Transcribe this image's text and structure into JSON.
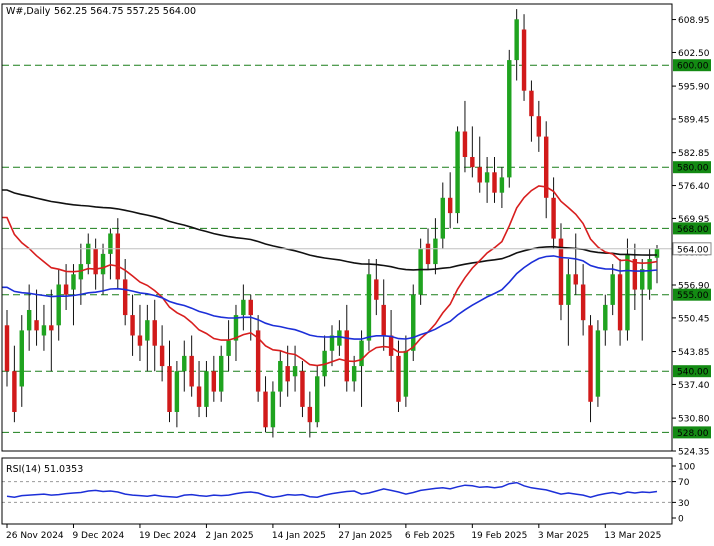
{
  "header": {
    "symbol_label": "W#,Daily",
    "ohlc_label": "562.25 564.75 557.25 564.00"
  },
  "chart_data": [
    {
      "type": "candlestick",
      "title": "W#,Daily",
      "ohlc": {
        "open": 562.25,
        "high": 564.75,
        "low": 557.25,
        "close": 564.0
      },
      "ylim": [
        524.35,
        612.0
      ],
      "y_ticks": [
        "608.95",
        "602.50",
        "595.90",
        "589.45",
        "582.85",
        "576.40",
        "569.95",
        "563.35",
        "556.90",
        "550.45",
        "543.85",
        "537.40",
        "530.80",
        "524.35"
      ],
      "x_ticks": [
        "26 Nov 2024",
        "9 Dec 2024",
        "19 Dec 2024",
        "2 Jan 2025",
        "14 Jan 2025",
        "27 Jan 2025",
        "6 Feb 2025",
        "19 Feb 2025",
        "3 Mar 2025",
        "13 Mar 2025"
      ],
      "level_lines": [
        600.0,
        580.0,
        568.0,
        555.0,
        540.0,
        528.0
      ],
      "level_labels": [
        "600.00",
        "580.00",
        "568.00",
        "555.00",
        "540.00",
        "528.00"
      ],
      "current_price": 564.0,
      "current_price_label": "564.00",
      "candles": [
        {
          "o": 549,
          "h": 552,
          "l": 537,
          "c": 540
        },
        {
          "o": 540,
          "h": 545,
          "l": 530,
          "c": 532
        },
        {
          "o": 537,
          "h": 551,
          "l": 533,
          "c": 548
        },
        {
          "o": 548,
          "h": 557,
          "l": 544,
          "c": 552
        },
        {
          "o": 550,
          "h": 556,
          "l": 545,
          "c": 548
        },
        {
          "o": 547,
          "h": 553,
          "l": 544,
          "c": 549
        },
        {
          "o": 549,
          "h": 556,
          "l": 540,
          "c": 548
        },
        {
          "o": 549,
          "h": 560,
          "l": 546,
          "c": 557
        },
        {
          "o": 557,
          "h": 561,
          "l": 552,
          "c": 555
        },
        {
          "o": 556,
          "h": 561,
          "l": 549,
          "c": 559
        },
        {
          "o": 558,
          "h": 565,
          "l": 553,
          "c": 561
        },
        {
          "o": 561,
          "h": 567,
          "l": 559,
          "c": 565
        },
        {
          "o": 564,
          "h": 566,
          "l": 556,
          "c": 559
        },
        {
          "o": 559,
          "h": 565,
          "l": 555,
          "c": 563
        },
        {
          "o": 563,
          "h": 568,
          "l": 558,
          "c": 567
        },
        {
          "o": 567,
          "h": 570,
          "l": 556,
          "c": 558
        },
        {
          "o": 558,
          "h": 562,
          "l": 549,
          "c": 551
        },
        {
          "o": 551,
          "h": 555,
          "l": 543,
          "c": 547
        },
        {
          "o": 547,
          "h": 553,
          "l": 542,
          "c": 545
        },
        {
          "o": 546,
          "h": 553,
          "l": 540,
          "c": 550
        },
        {
          "o": 550,
          "h": 554,
          "l": 540,
          "c": 545
        },
        {
          "o": 545,
          "h": 549,
          "l": 538,
          "c": 541
        },
        {
          "o": 541,
          "h": 546,
          "l": 530,
          "c": 532
        },
        {
          "o": 532,
          "h": 542,
          "l": 529,
          "c": 540
        },
        {
          "o": 540,
          "h": 546,
          "l": 536,
          "c": 543
        },
        {
          "o": 543,
          "h": 547,
          "l": 535,
          "c": 537
        },
        {
          "o": 537,
          "h": 542,
          "l": 531,
          "c": 533
        },
        {
          "o": 533,
          "h": 542,
          "l": 531,
          "c": 540
        },
        {
          "o": 540,
          "h": 543,
          "l": 534,
          "c": 536
        },
        {
          "o": 536,
          "h": 545,
          "l": 534,
          "c": 543
        },
        {
          "o": 543,
          "h": 550,
          "l": 540,
          "c": 546
        },
        {
          "o": 546,
          "h": 553,
          "l": 542,
          "c": 551
        },
        {
          "o": 551,
          "h": 557,
          "l": 548,
          "c": 554
        },
        {
          "o": 554,
          "h": 555,
          "l": 546,
          "c": 551
        },
        {
          "o": 548,
          "h": 551,
          "l": 534,
          "c": 536
        },
        {
          "o": 536,
          "h": 539,
          "l": 528,
          "c": 529
        },
        {
          "o": 529,
          "h": 538,
          "l": 527,
          "c": 536
        },
        {
          "o": 536,
          "h": 544,
          "l": 533,
          "c": 542
        },
        {
          "o": 541,
          "h": 545,
          "l": 535,
          "c": 538
        },
        {
          "o": 539,
          "h": 545,
          "l": 536,
          "c": 541
        },
        {
          "o": 540,
          "h": 542,
          "l": 531,
          "c": 533
        },
        {
          "o": 533,
          "h": 536,
          "l": 527,
          "c": 530
        },
        {
          "o": 530,
          "h": 541,
          "l": 529,
          "c": 539
        },
        {
          "o": 539,
          "h": 547,
          "l": 537,
          "c": 544
        },
        {
          "o": 544,
          "h": 549,
          "l": 541,
          "c": 547
        },
        {
          "o": 545,
          "h": 550,
          "l": 543,
          "c": 548
        },
        {
          "o": 548,
          "h": 553,
          "l": 536,
          "c": 538
        },
        {
          "o": 538,
          "h": 543,
          "l": 536,
          "c": 541
        },
        {
          "o": 541,
          "h": 548,
          "l": 533,
          "c": 546
        },
        {
          "o": 546,
          "h": 562,
          "l": 544,
          "c": 559
        },
        {
          "o": 558,
          "h": 562,
          "l": 551,
          "c": 554
        },
        {
          "o": 553,
          "h": 558,
          "l": 544,
          "c": 547
        },
        {
          "o": 547,
          "h": 552,
          "l": 540,
          "c": 543
        },
        {
          "o": 543,
          "h": 546,
          "l": 532,
          "c": 534
        },
        {
          "o": 535,
          "h": 547,
          "l": 533,
          "c": 544
        },
        {
          "o": 544,
          "h": 557,
          "l": 542,
          "c": 555
        },
        {
          "o": 555,
          "h": 566,
          "l": 553,
          "c": 564
        },
        {
          "o": 565,
          "h": 568,
          "l": 560,
          "c": 561
        },
        {
          "o": 561,
          "h": 570,
          "l": 559,
          "c": 566
        },
        {
          "o": 566,
          "h": 577,
          "l": 564,
          "c": 574
        },
        {
          "o": 574,
          "h": 579,
          "l": 568,
          "c": 571
        },
        {
          "o": 571,
          "h": 588,
          "l": 569,
          "c": 587
        },
        {
          "o": 587,
          "h": 593,
          "l": 579,
          "c": 582
        },
        {
          "o": 582,
          "h": 588,
          "l": 578,
          "c": 580
        },
        {
          "o": 580,
          "h": 586,
          "l": 575,
          "c": 577
        },
        {
          "o": 577,
          "h": 582,
          "l": 573,
          "c": 579
        },
        {
          "o": 579,
          "h": 582,
          "l": 573,
          "c": 575
        },
        {
          "o": 575,
          "h": 580,
          "l": 572,
          "c": 578
        },
        {
          "o": 578,
          "h": 603,
          "l": 576,
          "c": 601
        },
        {
          "o": 601,
          "h": 611,
          "l": 597,
          "c": 609
        },
        {
          "o": 607,
          "h": 610,
          "l": 593,
          "c": 595
        },
        {
          "o": 595,
          "h": 597,
          "l": 585,
          "c": 590
        },
        {
          "o": 590,
          "h": 593,
          "l": 583,
          "c": 586
        },
        {
          "o": 586,
          "h": 589,
          "l": 570,
          "c": 574
        },
        {
          "o": 574,
          "h": 578,
          "l": 564,
          "c": 566
        },
        {
          "o": 566,
          "h": 569,
          "l": 550,
          "c": 553
        },
        {
          "o": 553,
          "h": 562,
          "l": 545,
          "c": 559
        },
        {
          "o": 559,
          "h": 567,
          "l": 555,
          "c": 557
        },
        {
          "o": 557,
          "h": 561,
          "l": 547,
          "c": 550
        },
        {
          "o": 549,
          "h": 551,
          "l": 530,
          "c": 534
        },
        {
          "o": 535,
          "h": 550,
          "l": 533,
          "c": 548
        },
        {
          "o": 548,
          "h": 555,
          "l": 545,
          "c": 553
        },
        {
          "o": 553,
          "h": 561,
          "l": 551,
          "c": 559
        },
        {
          "o": 559,
          "h": 562,
          "l": 545,
          "c": 548
        },
        {
          "o": 548,
          "h": 566,
          "l": 546,
          "c": 563
        },
        {
          "o": 562,
          "h": 565,
          "l": 552,
          "c": 556
        },
        {
          "o": 556,
          "h": 562,
          "l": 546,
          "c": 560
        },
        {
          "o": 556,
          "h": 564,
          "l": 554,
          "c": 562
        },
        {
          "o": 562.25,
          "h": 564.75,
          "l": 557.25,
          "c": 564
        }
      ]
    },
    {
      "type": "line",
      "title": "RSI(14) 51.0353",
      "ylim": [
        0,
        100
      ],
      "y_ticks": [
        "100",
        "70",
        "30",
        "0"
      ],
      "levels": [
        70,
        30
      ],
      "values": [
        42,
        40,
        43,
        44,
        45,
        46,
        44,
        45,
        47,
        48,
        49,
        52,
        53,
        51,
        52,
        50,
        46,
        44,
        43,
        42,
        44,
        42,
        41,
        40,
        44,
        45,
        43,
        42,
        44,
        43,
        44,
        47,
        49,
        50,
        48,
        43,
        40,
        42,
        45,
        44,
        45,
        41,
        40,
        44,
        47,
        49,
        51,
        52,
        46,
        48,
        52,
        56,
        53,
        50,
        46,
        49,
        53,
        55,
        57,
        58,
        56,
        60,
        63,
        62,
        59,
        60,
        58,
        60,
        66,
        68,
        62,
        58,
        56,
        54,
        50,
        46,
        48,
        46,
        44,
        40,
        44,
        47,
        49,
        46,
        50,
        48,
        50,
        49,
        51
      ]
    }
  ]
}
